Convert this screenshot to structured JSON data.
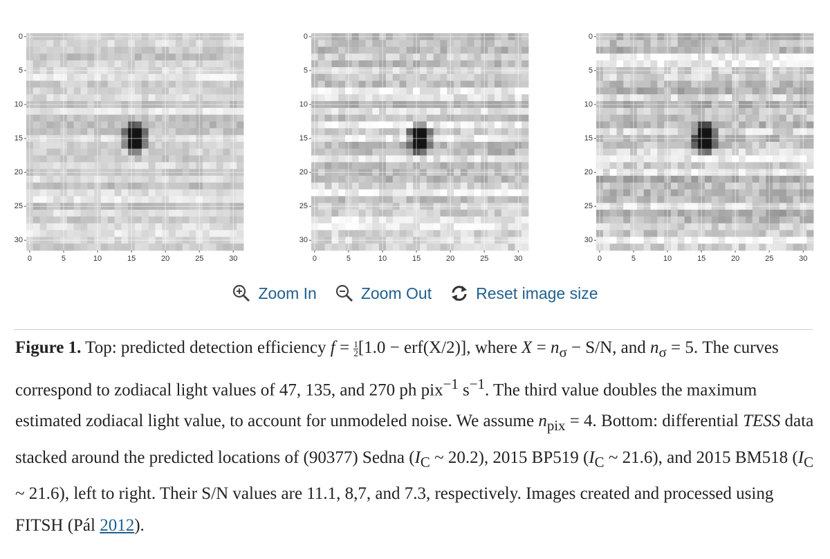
{
  "panels": [
    {
      "xticks": [
        0,
        5,
        10,
        15,
        20,
        25,
        30
      ],
      "yticks": [
        0,
        5,
        10,
        15,
        20,
        25,
        30
      ]
    },
    {
      "xticks": [
        0,
        5,
        10,
        15,
        20,
        25,
        30
      ],
      "yticks": [
        0,
        5,
        10,
        15,
        20,
        25,
        30
      ]
    },
    {
      "xticks": [
        0,
        5,
        10,
        15,
        20,
        25,
        30
      ],
      "yticks": [
        0,
        5,
        10,
        15,
        20,
        25,
        30
      ]
    }
  ],
  "toolbar": {
    "zoom_in": "Zoom In",
    "zoom_out": "Zoom Out",
    "reset": "Reset image size"
  },
  "caption": [
    "Figure 1.",
    " Top: predicted detection efficiency ",
    "f",
    " = ",
    "1",
    "2",
    "[1.0 − erf(X/2)], where ",
    "X",
    " = ",
    "n",
    "σ",
    " − S/N, and ",
    "n",
    "σ",
    " = 5. The curves correspond to zodiacal light values of 47, 135, and 270 ph pix",
    "−1",
    " s",
    "−1",
    ". The third value doubles the maximum estimated zodiacal light value, to account for unmodeled noise. We assume ",
    "n",
    "pix",
    " = 4. Bottom: differential ",
    "TESS",
    " data stacked around the predicted locations of (90377) Sedna (",
    "I",
    "C",
    " ~ 20.2), 2015 BP519 (",
    "I",
    "C",
    " ~ 21.6), and 2015 BM518 (",
    "I",
    "C",
    " ~ 21.6), left to right. Their S/N values are 11.1, 8,7, and 7.3, respectively. Images created and processed using FITSH (Pál ",
    "2012",
    ")."
  ]
}
